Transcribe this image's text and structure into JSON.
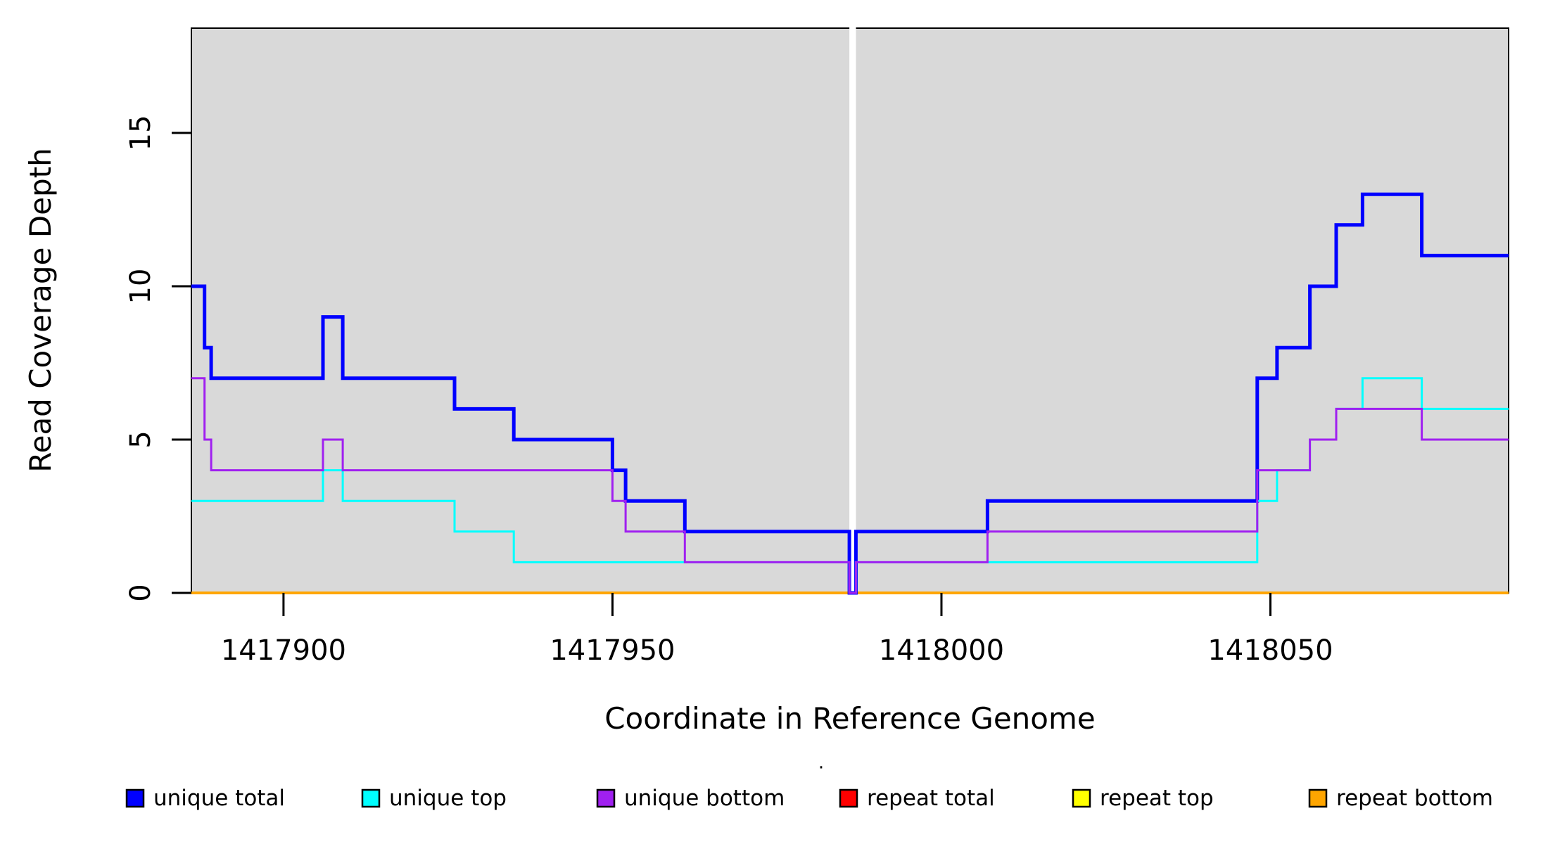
{
  "figure": {
    "page_bg": "#FFFFFF",
    "plot_bg": "#D9D9D9",
    "frame_color": "#000000",
    "tick_color": "#000000",
    "text_color": "#000000"
  },
  "x_axis": {
    "title": "Coordinate in Reference Genome"
  },
  "y_axis": {
    "title": "Read Coverage Depth"
  },
  "marker": {
    "x": 1417986,
    "color": "#FFFFFF"
  },
  "legend": {
    "stray_mark": "·",
    "items": [
      {
        "label": "unique total",
        "color": "#0000FF"
      },
      {
        "label": "unique top",
        "color": "#00FFFF"
      },
      {
        "label": "unique bottom",
        "color": "#A020F0"
      },
      {
        "label": "repeat total",
        "color": "#FF0000"
      },
      {
        "label": "repeat top",
        "color": "#FFFF00"
      },
      {
        "label": "repeat bottom",
        "color": "#FFA500"
      }
    ]
  },
  "chart_data": {
    "type": "line",
    "step": true,
    "title": "",
    "xlabel": "Coordinate in Reference Genome",
    "ylabel": "Read Coverage Depth",
    "xlim": [
      1417886,
      1418086
    ],
    "ylim": [
      0,
      18.4
    ],
    "x_ticks": [
      1417900,
      1417950,
      1418000,
      1418050
    ],
    "y_ticks": [
      0,
      5,
      10,
      15
    ],
    "grid": false,
    "legend_position": "bottom",
    "background": "#D9D9D9",
    "gap_marker_x": 1417986,
    "x_end": 1418086.2,
    "series": [
      {
        "name": "unique total",
        "color": "#0000FF",
        "width": 5,
        "steps": [
          [
            1417886,
            10
          ],
          [
            1417888,
            8
          ],
          [
            1417889,
            7
          ],
          [
            1417906,
            9
          ],
          [
            1417909,
            7
          ],
          [
            1417926,
            6
          ],
          [
            1417935,
            5
          ],
          [
            1417950,
            4
          ],
          [
            1417952,
            3
          ],
          [
            1417961,
            2
          ],
          [
            1417986,
            0
          ],
          [
            1417987,
            2
          ],
          [
            1418007,
            3
          ],
          [
            1418048,
            7
          ],
          [
            1418051,
            8
          ],
          [
            1418056,
            10
          ],
          [
            1418060,
            12
          ],
          [
            1418064,
            13
          ],
          [
            1418073,
            11
          ]
        ]
      },
      {
        "name": "unique top",
        "color": "#00FFFF",
        "width": 3,
        "steps": [
          [
            1417886,
            3
          ],
          [
            1417906,
            4
          ],
          [
            1417909,
            3
          ],
          [
            1417926,
            2
          ],
          [
            1417935,
            1
          ],
          [
            1417986,
            0
          ],
          [
            1417987,
            1
          ],
          [
            1418048,
            3
          ],
          [
            1418051,
            4
          ],
          [
            1418056,
            5
          ],
          [
            1418060,
            6
          ],
          [
            1418064,
            7
          ],
          [
            1418073,
            6
          ]
        ]
      },
      {
        "name": "unique bottom",
        "color": "#A020F0",
        "width": 3,
        "steps": [
          [
            1417886,
            7
          ],
          [
            1417888,
            5
          ],
          [
            1417889,
            4
          ],
          [
            1417906,
            5
          ],
          [
            1417909,
            4
          ],
          [
            1417950,
            3
          ],
          [
            1417952,
            2
          ],
          [
            1417961,
            1
          ],
          [
            1417986,
            0
          ],
          [
            1417987,
            1
          ],
          [
            1418007,
            2
          ],
          [
            1418048,
            4
          ],
          [
            1418056,
            5
          ],
          [
            1418060,
            6
          ],
          [
            1418073,
            5
          ]
        ]
      },
      {
        "name": "repeat total",
        "color": "#FF0000",
        "width": 3,
        "steps": [
          [
            1417886,
            0
          ]
        ]
      },
      {
        "name": "repeat top",
        "color": "#FFFF00",
        "width": 3,
        "steps": [
          [
            1417886,
            0
          ]
        ]
      },
      {
        "name": "repeat bottom",
        "color": "#FFA500",
        "width": 4,
        "steps": [
          [
            1417886,
            0
          ]
        ]
      }
    ]
  }
}
